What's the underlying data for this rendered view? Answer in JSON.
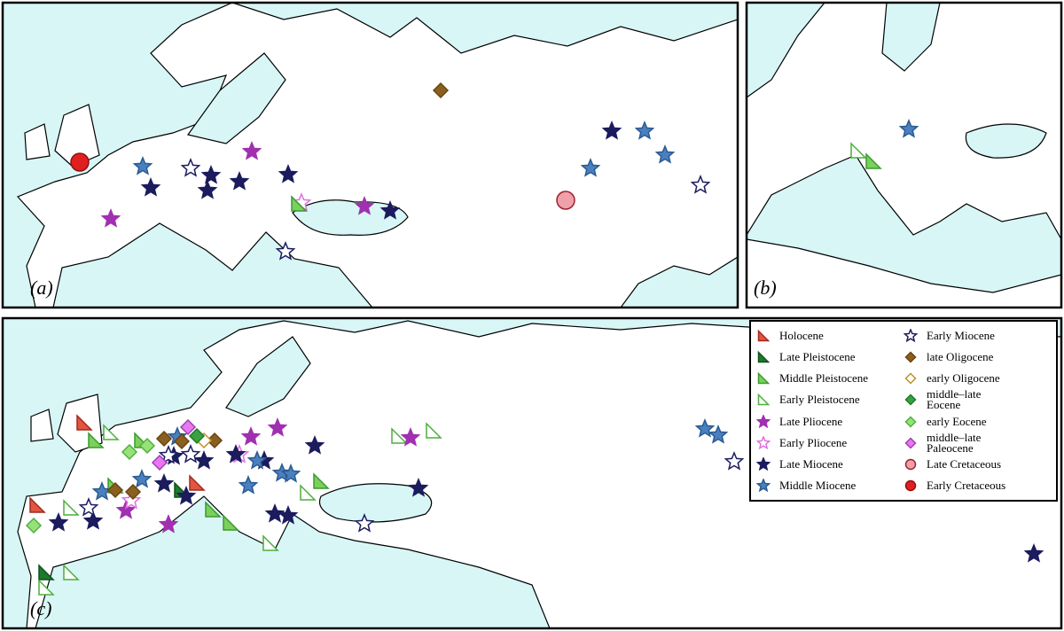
{
  "panels": [
    {
      "label": "(a)"
    },
    {
      "label": "(b)"
    },
    {
      "label": "(c)"
    }
  ],
  "legend": {
    "items": [
      {
        "label": "Holocene",
        "marker": "triangle",
        "fill": "#e2553f",
        "stroke": "#a02a20"
      },
      {
        "label": "Late Pleistocene",
        "marker": "triangle",
        "fill": "#1c7a2c",
        "stroke": "#10501a"
      },
      {
        "label": "Middle Pleistocene",
        "marker": "triangle",
        "fill": "#7ccf5a",
        "stroke": "#3a9a30"
      },
      {
        "label": "Early Pleistocene",
        "marker": "triangle",
        "fill": "#ffffff",
        "stroke": "#4cae3c"
      },
      {
        "label": "Late Pliocene",
        "marker": "star",
        "fill": "#a030b0",
        "stroke": "#a030b0"
      },
      {
        "label": "Early Pliocene",
        "marker": "star",
        "fill": "#ffffff",
        "stroke": "#e070e0"
      },
      {
        "label": "Late Miocene",
        "marker": "star",
        "fill": "#1b1b5e",
        "stroke": "#1b1b5e"
      },
      {
        "label": "Middle Miocene",
        "marker": "star",
        "fill": "#4a80c0",
        "stroke": "#2a5a90"
      },
      {
        "label": "Early Miocene",
        "marker": "star",
        "fill": "#ffffff",
        "stroke": "#1b1b5e"
      },
      {
        "label": "late Oligocene",
        "marker": "diamond",
        "fill": "#8a6020",
        "stroke": "#6a4510"
      },
      {
        "label": "early Oligocene",
        "marker": "diamond",
        "fill": "#ffffff",
        "stroke": "#c0902a"
      },
      {
        "label": "middle–late\nEocene",
        "marker": "diamond",
        "fill": "#3aa040",
        "stroke": "#217a28"
      },
      {
        "label": "early Eocene",
        "marker": "diamond",
        "fill": "#96e278",
        "stroke": "#50b040"
      },
      {
        "label": "middle–late\nPaleocene",
        "marker": "diamond",
        "fill": "#e878f2",
        "stroke": "#a040b0"
      },
      {
        "label": "Late Cretaceous",
        "marker": "circle",
        "fill": "#f0a0a8",
        "stroke": "#a02030"
      },
      {
        "label": "Early Cretaceous",
        "marker": "circle",
        "fill": "#e02020",
        "stroke": "#901010"
      }
    ]
  }
}
